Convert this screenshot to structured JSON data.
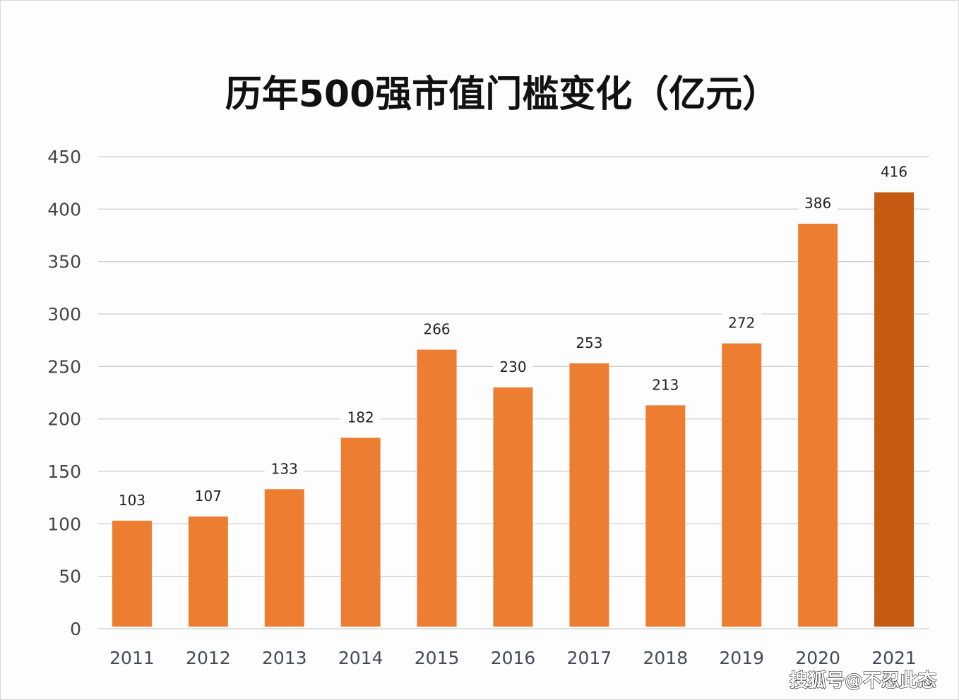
{
  "chart_data": {
    "type": "bar",
    "title": "历年500强市值门槛变化（亿元）",
    "categories": [
      "2011",
      "2012",
      "2013",
      "2014",
      "2015",
      "2016",
      "2017",
      "2018",
      "2019",
      "2020",
      "2021"
    ],
    "values": [
      103,
      107,
      133,
      182,
      266,
      230,
      253,
      213,
      272,
      386,
      416
    ],
    "ylim": [
      0,
      450
    ],
    "yticks": [
      0,
      50,
      100,
      150,
      200,
      250,
      300,
      350,
      400,
      450
    ],
    "grid": true,
    "data_labels": true,
    "colors": {
      "bar": "#ed7d31",
      "highlight": "#c55a11",
      "grid": "#d0d0d0"
    },
    "highlight_category": "2021"
  },
  "watermark": "搜狐号@不忍此态"
}
